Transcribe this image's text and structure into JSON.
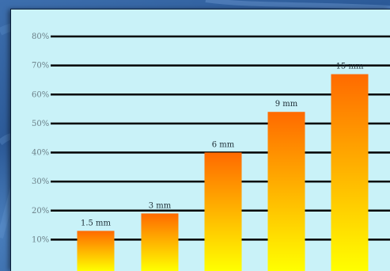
{
  "chart_data": {
    "type": "bar",
    "categories": [
      "",
      "",
      "",
      "",
      ""
    ],
    "values": [
      13,
      19,
      40,
      54,
      67
    ],
    "data_labels": [
      "1.5 mm",
      "3 mm",
      "6 mm",
      "9 mm",
      "15 mm"
    ],
    "y_tick_labels": [
      "10%",
      "20%",
      "30%",
      "40%",
      "50%",
      "60%",
      "70%",
      "80%"
    ],
    "y_ticks": [
      10,
      20,
      30,
      40,
      50,
      60,
      70,
      80
    ],
    "ylim": [
      0,
      85
    ],
    "grid": true,
    "legend": "none",
    "title": "",
    "xlabel": "",
    "ylabel": "",
    "colors": {
      "bar_top": "#ff6a00",
      "bar_bottom": "#ffff00",
      "grid": "#000000",
      "panel": "#c9f2f8",
      "background": "#2c5a98"
    }
  }
}
